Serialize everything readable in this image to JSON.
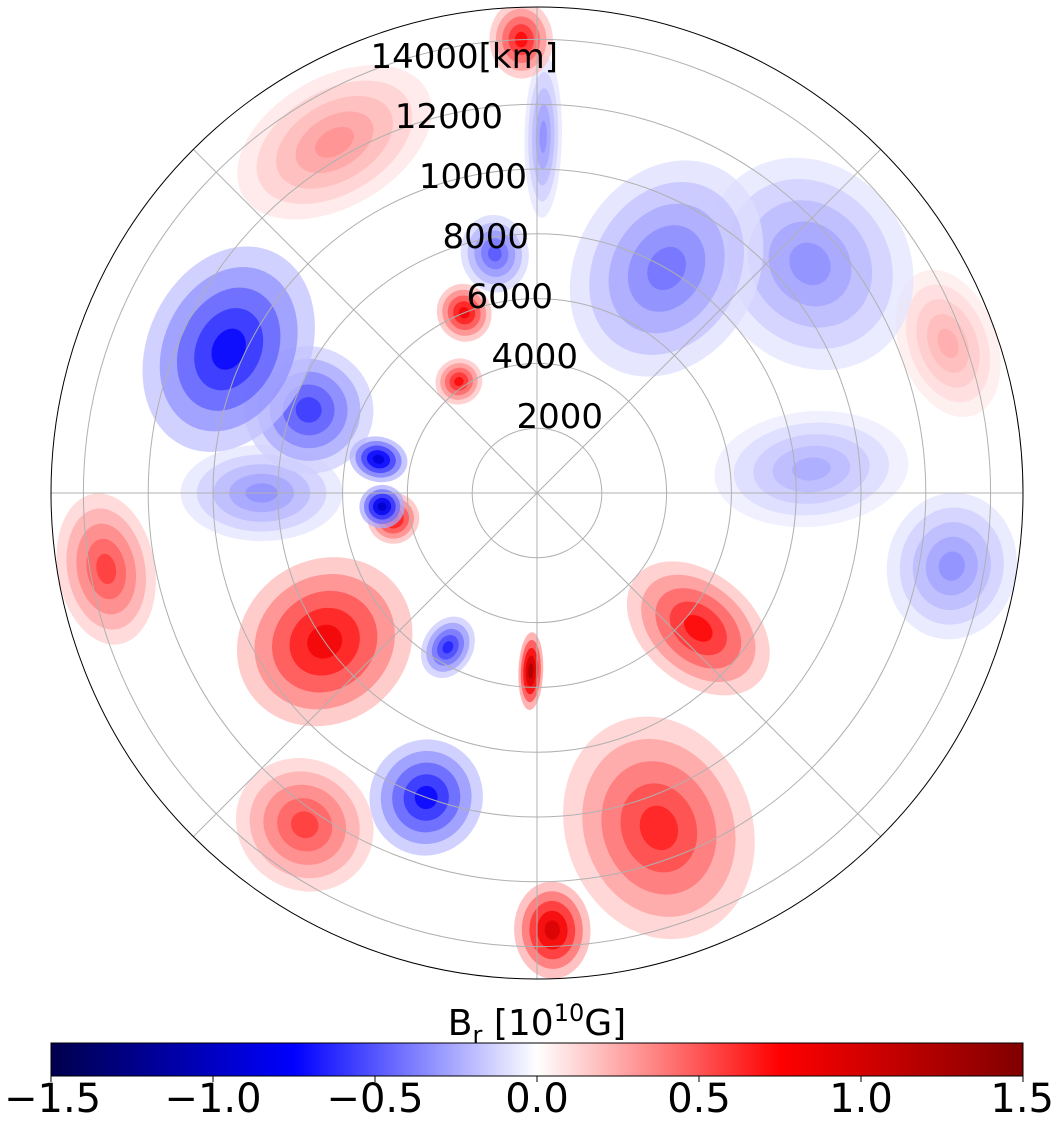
{
  "chart_data": {
    "type": "heatmap",
    "projection": "polar",
    "title": "",
    "colormap": "seismic",
    "color_stops": [
      "#00004c",
      "#0000ff",
      "#ffffff",
      "#ff0000",
      "#800000"
    ],
    "radial_axis": {
      "range": [
        0,
        15000
      ],
      "inner_masked_radius": 3000,
      "ticks": [
        2000,
        4000,
        6000,
        8000,
        10000,
        12000,
        14000
      ],
      "tick_labels": [
        "2000",
        "4000",
        "6000",
        "8000",
        "10000",
        "12000",
        "14000[km]"
      ],
      "label_position": "top"
    },
    "angular_gridlines_deg": [
      0,
      45,
      90,
      135,
      180,
      225,
      270,
      315
    ],
    "grid": true,
    "colorbar": {
      "orientation": "horizontal",
      "position": "bottom",
      "label_main": "B",
      "label_sub": "r",
      "label_units_prefix": "[10",
      "label_units_sup": "10",
      "label_units_suffix": "G]",
      "range": [
        -1.5,
        1.5
      ],
      "ticks": [
        -1.5,
        -1.0,
        -0.5,
        0.0,
        0.5,
        1.0,
        1.5
      ],
      "tick_labels": [
        "−1.5",
        "−1.0",
        "−0.5",
        "0.0",
        "0.5",
        "1.0",
        "1.5"
      ]
    },
    "field_blobs": [
      {
        "r": 10500,
        "theta": 155,
        "value": -0.9,
        "spread_r": 2500,
        "spread_t": 18
      },
      {
        "r": 7500,
        "theta": 160,
        "value": -0.7,
        "spread_r": 2000,
        "spread_t": 15
      },
      {
        "r": 5000,
        "theta": 168,
        "value": -1.1,
        "spread_r": 900,
        "spread_t": 8
      },
      {
        "r": 4200,
        "theta": 125,
        "value": 0.9,
        "spread_r": 700,
        "spread_t": 10
      },
      {
        "r": 6000,
        "theta": 112,
        "value": 1.0,
        "spread_r": 900,
        "spread_t": 8
      },
      {
        "r": 7500,
        "theta": 100,
        "value": -0.6,
        "spread_r": 1200,
        "spread_t": 8
      },
      {
        "r": 12500,
        "theta": 120,
        "value": 0.4,
        "spread_r": 2000,
        "spread_t": 15
      },
      {
        "r": 14000,
        "theta": 92,
        "value": 0.9,
        "spread_r": 1200,
        "spread_t": 4
      },
      {
        "r": 11000,
        "theta": 89,
        "value": -0.4,
        "spread_r": 2500,
        "spread_t": 3
      },
      {
        "r": 8000,
        "theta": 60,
        "value": -0.5,
        "spread_r": 3500,
        "spread_t": 20
      },
      {
        "r": 11000,
        "theta": 40,
        "value": -0.4,
        "spread_r": 3000,
        "spread_t": 18
      },
      {
        "r": 13500,
        "theta": 20,
        "value": 0.3,
        "spread_r": 1500,
        "spread_t": 10
      },
      {
        "r": 13000,
        "theta": -10,
        "value": -0.4,
        "spread_r": 2000,
        "spread_t": 10
      },
      {
        "r": 8500,
        "theta": 5,
        "value": -0.3,
        "spread_r": 3000,
        "spread_t": 12
      },
      {
        "r": 6500,
        "theta": -40,
        "value": 0.9,
        "spread_r": 2500,
        "spread_t": 15
      },
      {
        "r": 11000,
        "theta": -70,
        "value": 0.8,
        "spread_r": 3500,
        "spread_t": 15
      },
      {
        "r": 13500,
        "theta": -88,
        "value": 1.2,
        "spread_r": 1500,
        "spread_t": 5
      },
      {
        "r": 5500,
        "theta": -92,
        "value": 1.5,
        "spread_r": 1200,
        "spread_t": 4
      },
      {
        "r": 10000,
        "theta": -110,
        "value": -0.9,
        "spread_r": 1800,
        "spread_t": 10
      },
      {
        "r": 12500,
        "theta": -125,
        "value": 0.7,
        "spread_r": 2000,
        "spread_t": 10
      },
      {
        "r": 8000,
        "theta": -145,
        "value": 1.0,
        "spread_r": 2800,
        "spread_t": 18
      },
      {
        "r": 5500,
        "theta": -120,
        "value": -0.8,
        "spread_r": 1000,
        "spread_t": 8
      },
      {
        "r": 13500,
        "theta": -170,
        "value": 0.7,
        "spread_r": 1500,
        "spread_t": 10
      },
      {
        "r": 4500,
        "theta": -170,
        "value": 1.0,
        "spread_r": 800,
        "spread_t": 10
      },
      {
        "r": 8500,
        "theta": 180,
        "value": -0.4,
        "spread_r": 2500,
        "spread_t": 10
      },
      {
        "r": 4800,
        "theta": 185,
        "value": -1.2,
        "spread_r": 700,
        "spread_t": 8
      }
    ]
  }
}
